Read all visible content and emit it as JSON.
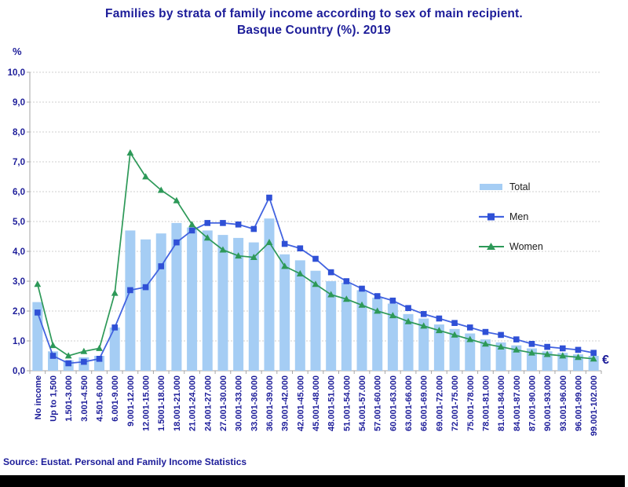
{
  "title": {
    "line1": "Families by strata of family income according to sex of main recipient.",
    "line2": "Basque Country (%). 2019"
  },
  "y_axis": {
    "unit": "%",
    "tick_labels": [
      "10,0",
      "9,0",
      "8,0",
      "7,0",
      "6,0",
      "5,0",
      "4,0",
      "3,0",
      "2,0",
      "1,0",
      "0,0"
    ]
  },
  "x_axis": {
    "currency_label": "€"
  },
  "source": "Source: Eustat. Personal and Family Income Statistics",
  "colors": {
    "navy_text": "#1c1c99",
    "bar_fill": "#a5cdf4",
    "men_line": "#4263e0",
    "men_marker": "#2f50d6",
    "women_line": "#2d9958",
    "women_marker": "#2d9958",
    "grid": "#cfcfcf",
    "axis": "#a6a6a6",
    "legend_text": "#1a1a1a",
    "footer": "#000000"
  },
  "chart_data": {
    "type": "bar",
    "title": "Families by strata of family income according to sex of main recipient. Basque Country (%). 2019",
    "xlabel": "€",
    "ylabel": "%",
    "ylim": [
      0,
      10
    ],
    "grid": true,
    "legend_position": "upper right",
    "categories": [
      "No income",
      "Up to 1,500",
      "1.501-3.000",
      "3.001-4.500",
      "4.501-6.000",
      "6.001-9.000",
      "9.001-12.000",
      "12.001-15.000",
      "1.5001-18.000",
      "18.001-21.000",
      "21.001-24.000",
      "24.001-27.000",
      "27.001-30.000",
      "30.001-33.000",
      "33.001-36.000",
      "36.001-39.000",
      "39.001-42.000",
      "42.001-45.000",
      "45.001-48.000",
      "48.001-51.000",
      "51.001-54.000",
      "54.001-57.000",
      "57.001-60.000",
      "60.001-63.000",
      "63.001-66.000",
      "66.001-69.000",
      "69.001-72.000",
      "72.001-75.000",
      "75.001-78.000",
      "78.001-81.000",
      "81.001-84.000",
      "84.001-87.000",
      "87.001-90.000",
      "90.001-93.000",
      "93.001-96.000",
      "96.001-99.000",
      "99.001-102.000"
    ],
    "series": [
      {
        "name": "Total",
        "type": "bar",
        "values": [
          2.3,
          0.65,
          0.35,
          0.45,
          0.5,
          1.45,
          4.7,
          4.4,
          4.6,
          4.95,
          4.8,
          4.7,
          4.55,
          4.45,
          4.3,
          5.1,
          3.9,
          3.7,
          3.35,
          3.0,
          2.95,
          2.7,
          2.45,
          2.25,
          1.9,
          1.75,
          1.55,
          1.4,
          1.25,
          1.05,
          0.95,
          0.85,
          0.75,
          0.65,
          0.6,
          0.55,
          0.5
        ]
      },
      {
        "name": "Men",
        "type": "line",
        "marker": "square",
        "values": [
          1.95,
          0.5,
          0.25,
          0.3,
          0.4,
          1.45,
          2.7,
          2.8,
          3.5,
          4.3,
          4.7,
          4.95,
          4.95,
          4.9,
          4.75,
          5.8,
          4.25,
          4.1,
          3.75,
          3.3,
          3.0,
          2.75,
          2.5,
          2.35,
          2.1,
          1.9,
          1.75,
          1.6,
          1.45,
          1.3,
          1.2,
          1.05,
          0.9,
          0.8,
          0.75,
          0.7,
          0.6
        ]
      },
      {
        "name": "Women",
        "type": "line",
        "marker": "triangle",
        "values": [
          2.9,
          0.85,
          0.5,
          0.65,
          0.75,
          2.6,
          7.3,
          6.5,
          6.05,
          5.7,
          4.9,
          4.45,
          4.05,
          3.85,
          3.8,
          4.3,
          3.5,
          3.25,
          2.9,
          2.55,
          2.4,
          2.2,
          2.0,
          1.85,
          1.65,
          1.5,
          1.35,
          1.2,
          1.05,
          0.9,
          0.8,
          0.7,
          0.6,
          0.55,
          0.5,
          0.45,
          0.4
        ]
      }
    ]
  }
}
